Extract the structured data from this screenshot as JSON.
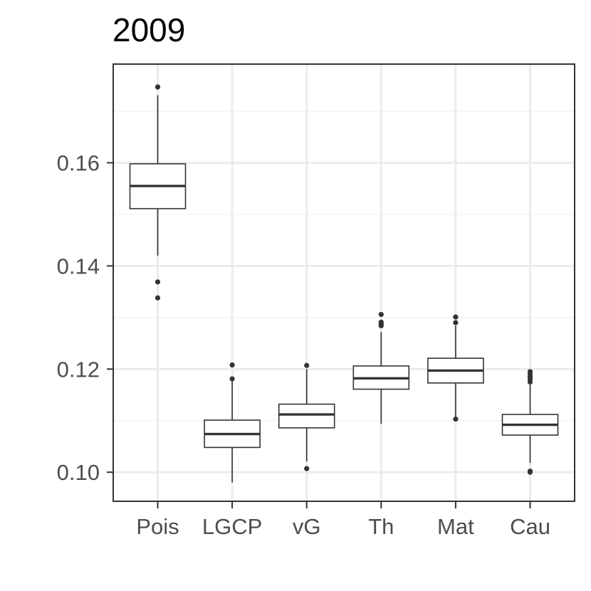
{
  "chart_data": {
    "type": "boxplot",
    "title": "2009",
    "xlabel": "",
    "ylabel": "",
    "categories": [
      "Pois",
      "LGCP",
      "vG",
      "Th",
      "Mat",
      "Cau"
    ],
    "ylim": [
      0.0945,
      0.179
    ],
    "y_ticks": [
      0.1,
      0.12,
      0.14,
      0.16
    ],
    "y_tick_labels": [
      "0.10",
      "0.12",
      "0.14",
      "0.16"
    ],
    "y_minor_ticks": [
      0.11,
      0.13,
      0.15,
      0.17
    ],
    "grid": true,
    "legend": "none",
    "boxes": [
      {
        "category": "Pois",
        "whisker_low": 0.142,
        "q1": 0.1511,
        "median": 0.1555,
        "q3": 0.1598,
        "whisker_high": 0.1731,
        "outliers": [
          0.1747,
          0.1369,
          0.1338
        ]
      },
      {
        "category": "LGCP",
        "whisker_low": 0.098,
        "q1": 0.1048,
        "median": 0.1074,
        "q3": 0.1101,
        "whisker_high": 0.1178,
        "outliers": [
          0.1208,
          0.1181
        ]
      },
      {
        "category": "vG",
        "whisker_low": 0.1021,
        "q1": 0.1086,
        "median": 0.1112,
        "q3": 0.1132,
        "whisker_high": 0.12,
        "outliers": [
          0.1207,
          0.1007
        ]
      },
      {
        "category": "Th",
        "whisker_low": 0.1094,
        "q1": 0.1161,
        "median": 0.1182,
        "q3": 0.1206,
        "whisker_high": 0.1272,
        "outliers": [
          0.1306,
          0.1291,
          0.1287,
          0.1284
        ]
      },
      {
        "category": "Mat",
        "whisker_low": 0.1104,
        "q1": 0.1173,
        "median": 0.1197,
        "q3": 0.1221,
        "whisker_high": 0.1284,
        "outliers": [
          0.1301,
          0.129,
          0.1103
        ]
      },
      {
        "category": "Cau",
        "whisker_low": 0.1018,
        "q1": 0.1072,
        "median": 0.1092,
        "q3": 0.1112,
        "whisker_high": 0.117,
        "outliers": [
          0.1195,
          0.119,
          0.1185,
          0.118,
          0.1175,
          0.1002,
          0.1
        ]
      }
    ],
    "colors": {
      "box_fill": "#ffffff",
      "box_line": "#333333",
      "panel_border": "#333333",
      "grid_major": "#ebebeb",
      "grid_minor": "#f4f4f4",
      "tick_text": "#4d4d4d",
      "title_text": "#000000"
    }
  }
}
